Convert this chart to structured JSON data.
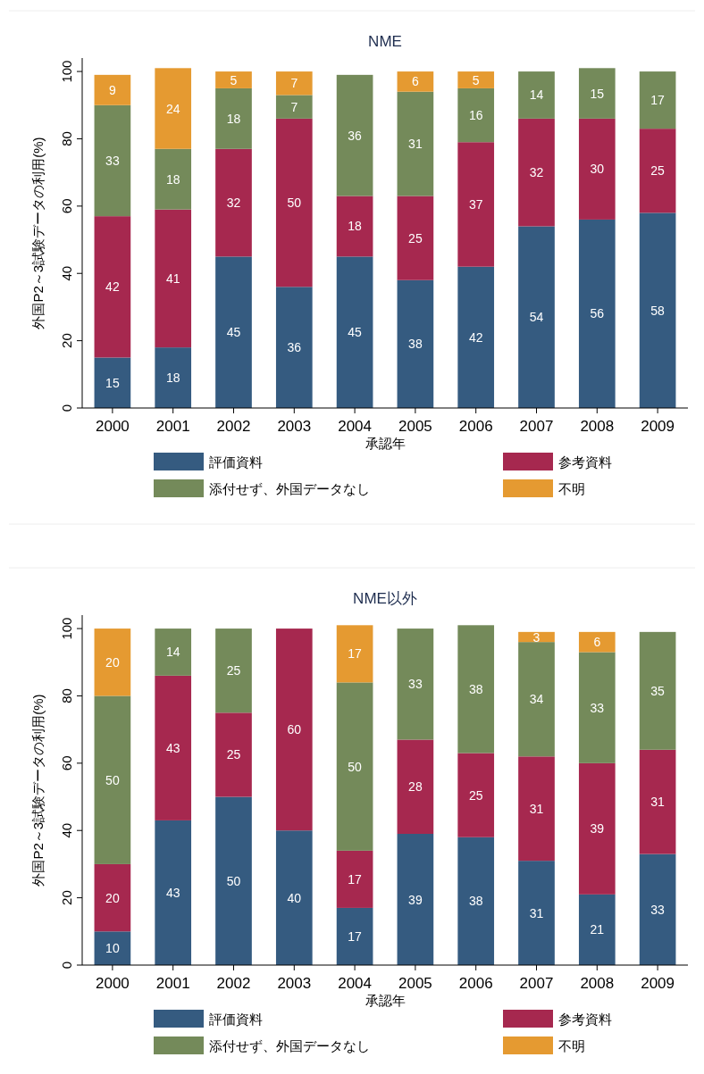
{
  "chart_data": [
    {
      "type": "bar",
      "stacked": true,
      "title": "NME",
      "xlabel": "承認年",
      "ylabel": "外国P2～3試験データの利用(%)",
      "categories": [
        "2000",
        "2001",
        "2002",
        "2003",
        "2004",
        "2005",
        "2006",
        "2007",
        "2008",
        "2009"
      ],
      "ylim": [
        0,
        104
      ],
      "yticks": [
        0,
        20,
        40,
        60,
        80,
        100
      ],
      "grid": false,
      "legend": "bottom",
      "data_labels": true,
      "series": [
        {
          "name": "評価資料",
          "color": "#355b80",
          "values": [
            15,
            18,
            45,
            36,
            45,
            38,
            42,
            54,
            56,
            58
          ]
        },
        {
          "name": "参考資料",
          "color": "#a6284f",
          "values": [
            42,
            41,
            32,
            50,
            18,
            25,
            37,
            32,
            30,
            25
          ]
        },
        {
          "name": "添付せず、外国データなし",
          "color": "#748a5a",
          "values": [
            33,
            18,
            18,
            7,
            36,
            31,
            16,
            14,
            15,
            17
          ]
        },
        {
          "name": "不明",
          "color": "#e59a31",
          "values": [
            9,
            24,
            5,
            7,
            null,
            6,
            5,
            null,
            null,
            null
          ]
        }
      ]
    },
    {
      "type": "bar",
      "stacked": true,
      "title": "NME以外",
      "xlabel": "承認年",
      "ylabel": "外国P2～3試験データの利用(%)",
      "categories": [
        "2000",
        "2001",
        "2002",
        "2003",
        "2004",
        "2005",
        "2006",
        "2007",
        "2008",
        "2009"
      ],
      "ylim": [
        0,
        104
      ],
      "yticks": [
        0,
        20,
        40,
        60,
        80,
        100
      ],
      "grid": false,
      "legend": "bottom",
      "data_labels": true,
      "series": [
        {
          "name": "評価資料",
          "color": "#355b80",
          "values": [
            10,
            43,
            50,
            40,
            17,
            39,
            38,
            31,
            21,
            33
          ]
        },
        {
          "name": "参考資料",
          "color": "#a6284f",
          "values": [
            20,
            43,
            25,
            60,
            17,
            28,
            25,
            31,
            39,
            31
          ]
        },
        {
          "name": "添付せず、外国データなし",
          "color": "#748a5a",
          "values": [
            50,
            14,
            25,
            null,
            50,
            33,
            38,
            34,
            33,
            35
          ]
        },
        {
          "name": "不明",
          "color": "#e59a31",
          "values": [
            20,
            null,
            null,
            null,
            17,
            null,
            null,
            3,
            6,
            null
          ]
        }
      ]
    }
  ]
}
